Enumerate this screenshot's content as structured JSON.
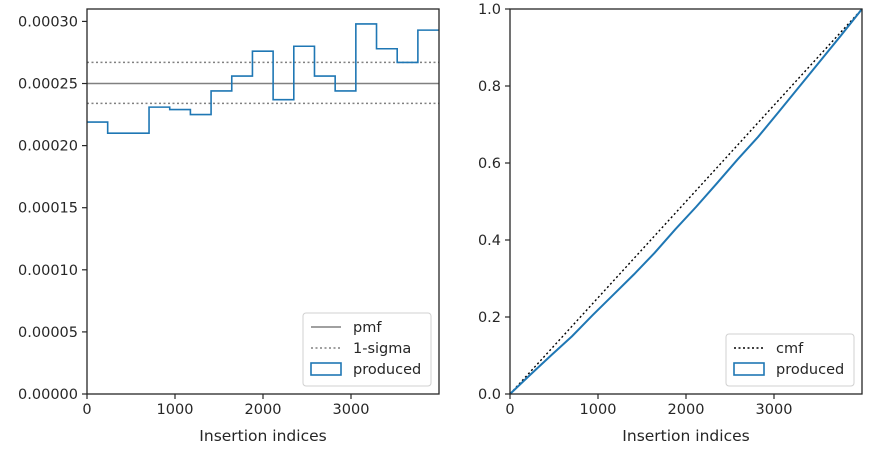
{
  "chart_data": [
    {
      "type": "line",
      "panel": "left",
      "title": "",
      "xlabel": "Insertion indices",
      "ylabel": "",
      "xlim": [
        0,
        4000
      ],
      "ylim": [
        0,
        0.00031
      ],
      "xticks": [
        0,
        1000,
        2000,
        3000
      ],
      "xtick_labels": [
        "0",
        "1000",
        "2000",
        "3000"
      ],
      "yticks": [
        0,
        5e-05,
        0.0001,
        0.00015,
        0.0002,
        0.00025,
        0.0003
      ],
      "ytick_labels": [
        "0.00000",
        "0.00005",
        "0.00010",
        "0.00015",
        "0.00020",
        "0.00025",
        "0.00030"
      ],
      "grid": false,
      "legend_position": "lower right",
      "series": [
        {
          "name": "pmf",
          "kind": "hline",
          "style": "solid",
          "color": "#808080",
          "y": 0.00025
        },
        {
          "name": "1-sigma",
          "kind": "hline",
          "style": "dotted",
          "color": "#808080",
          "y": [
            0.000234,
            0.000267
          ]
        },
        {
          "name": "produced",
          "kind": "step-histogram",
          "color": "#1f77b4",
          "bin_edges": [
            0,
            235,
            470,
            705,
            940,
            1175,
            1410,
            1645,
            1880,
            2115,
            2350,
            2585,
            2820,
            3055,
            3290,
            3525,
            3760,
            4000
          ],
          "values": [
            0.000219,
            0.00021,
            0.00021,
            0.000231,
            0.000229,
            0.000225,
            0.000244,
            0.000256,
            0.000276,
            0.000237,
            0.00028,
            0.000256,
            0.000244,
            0.000298,
            0.000278,
            0.000267,
            0.000293
          ]
        }
      ]
    },
    {
      "type": "line",
      "panel": "right",
      "title": "",
      "xlabel": "Insertion indices",
      "ylabel": "",
      "xlim": [
        0,
        4000
      ],
      "ylim": [
        0,
        1.0
      ],
      "xticks": [
        0,
        1000,
        2000,
        3000
      ],
      "xtick_labels": [
        "0",
        "1000",
        "2000",
        "3000"
      ],
      "yticks": [
        0,
        0.2,
        0.4,
        0.6,
        0.8,
        1.0
      ],
      "ytick_labels": [
        "0.0",
        "0.2",
        "0.4",
        "0.6",
        "0.8",
        "1.0"
      ],
      "grid": false,
      "legend_position": "lower right",
      "series": [
        {
          "name": "cmf",
          "style": "dotted",
          "color": "#000000",
          "x": [
            0,
            4000
          ],
          "y": [
            0,
            1.0
          ]
        },
        {
          "name": "produced",
          "style": "solid",
          "color": "#1f77b4",
          "x": [
            0,
            235,
            470,
            705,
            940,
            1175,
            1410,
            1645,
            1880,
            2115,
            2350,
            2585,
            2820,
            3055,
            3290,
            3525,
            3760,
            4000
          ],
          "y": [
            0,
            0.051,
            0.101,
            0.15,
            0.205,
            0.258,
            0.311,
            0.367,
            0.428,
            0.486,
            0.547,
            0.609,
            0.668,
            0.733,
            0.799,
            0.865,
            0.931,
            1.0
          ]
        }
      ]
    }
  ]
}
